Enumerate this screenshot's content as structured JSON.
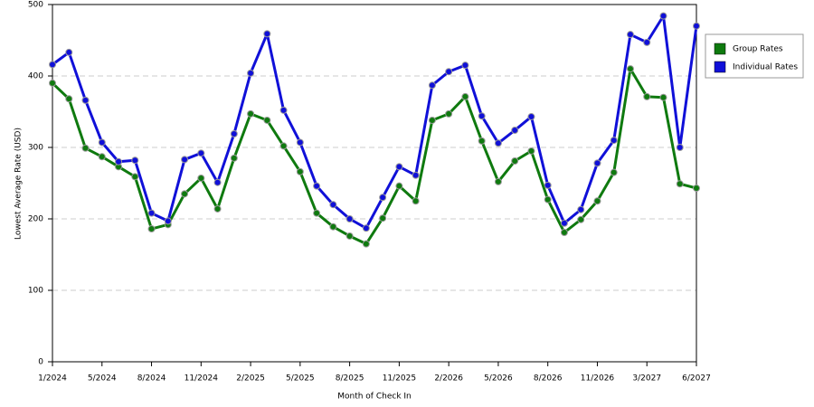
{
  "chart_data": {
    "type": "line",
    "x_label": "Month of Check In",
    "y_label": "Lowest Average Rate (USD)",
    "categories": [
      "1/2024",
      null,
      null,
      "5/2024",
      null,
      null,
      "8/2024",
      null,
      null,
      "11/2024",
      null,
      null,
      "2/2025",
      null,
      null,
      "5/2025",
      null,
      null,
      "8/2025",
      null,
      null,
      "11/2025",
      null,
      null,
      "2/2026",
      null,
      null,
      "5/2026",
      null,
      null,
      "8/2026",
      null,
      null,
      "11/2026",
      null,
      null,
      "3/2027",
      null,
      null,
      "6/2027"
    ],
    "series": [
      {
        "name": "Group Rates",
        "color": "#0f7a0f",
        "values": [
          390,
          368,
          299,
          287,
          273,
          259,
          186,
          192,
          235,
          257,
          214,
          285,
          347,
          338,
          302,
          266,
          208,
          189,
          176,
          165,
          201,
          246,
          225,
          338,
          347,
          371,
          309,
          252,
          281,
          295,
          227,
          181,
          199,
          225,
          265,
          410,
          371,
          370,
          249,
          243
        ]
      },
      {
        "name": "Individual Rates",
        "color": "#1010d8",
        "values": [
          416,
          433,
          366,
          307,
          280,
          282,
          208,
          197,
          283,
          292,
          251,
          319,
          404,
          459,
          352,
          307,
          246,
          220,
          200,
          187,
          230,
          273,
          261,
          387,
          406,
          415,
          344,
          306,
          324,
          343,
          247,
          194,
          213,
          278,
          310,
          458,
          447,
          484,
          300,
          470
        ]
      }
    ],
    "ylim": [
      0,
      500
    ],
    "yticks": [
      0,
      100,
      200,
      300,
      400,
      500
    ],
    "grid": true,
    "legend": "right"
  }
}
